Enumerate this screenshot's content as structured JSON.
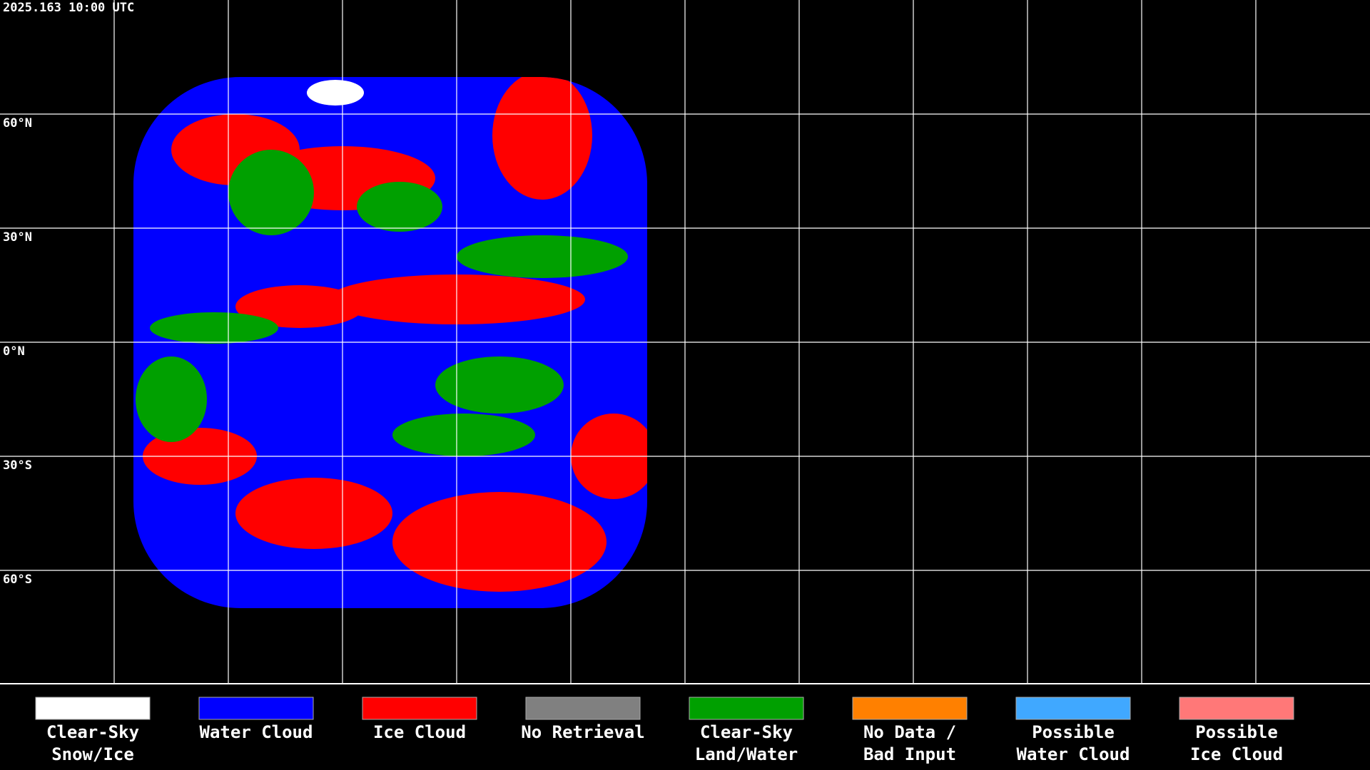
{
  "timestamp": "2025.163 10:00 UTC",
  "lat_labels": [
    "60°N",
    "30°N",
    "0°N",
    "30°S",
    "60°S"
  ],
  "legend": [
    {
      "lines": [
        "Clear-Sky",
        "Snow/Ice"
      ],
      "color": "#ffffff"
    },
    {
      "lines": [
        "Water Cloud"
      ],
      "color": "#0000ff"
    },
    {
      "lines": [
        "Ice Cloud"
      ],
      "color": "#ff0000"
    },
    {
      "lines": [
        "No Retrieval"
      ],
      "color": "#808080"
    },
    {
      "lines": [
        "Clear-Sky",
        "Land/Water"
      ],
      "color": "#00a000"
    },
    {
      "lines": [
        "No Data /",
        "Bad Input"
      ],
      "color": "#ff8000"
    },
    {
      "lines": [
        "Possible",
        "Water Cloud"
      ],
      "color": "#40a8ff"
    },
    {
      "lines": [
        "Possible",
        "Ice Cloud"
      ],
      "color": "#ff7878"
    }
  ]
}
